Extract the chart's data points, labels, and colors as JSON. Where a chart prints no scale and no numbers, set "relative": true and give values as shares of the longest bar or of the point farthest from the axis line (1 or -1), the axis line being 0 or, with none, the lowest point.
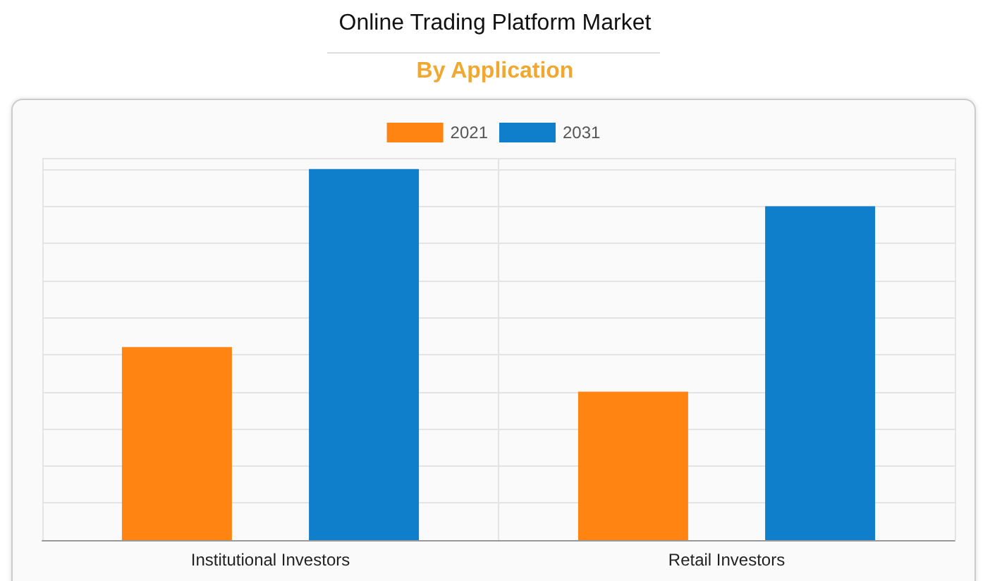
{
  "chart_data": {
    "type": "bar",
    "title": "Online Trading Platform Market",
    "subtitle": "By Application",
    "categories": [
      "Institutional Investors",
      "Retail Investors"
    ],
    "series": [
      {
        "name": "2021",
        "color": "#ff8412",
        "values": [
          0.52,
          0.4
        ]
      },
      {
        "name": "2031",
        "color": "#0f7fcc",
        "values": [
          1,
          0.9
        ]
      }
    ],
    "relative": true,
    "grid": true,
    "legend": "top"
  }
}
